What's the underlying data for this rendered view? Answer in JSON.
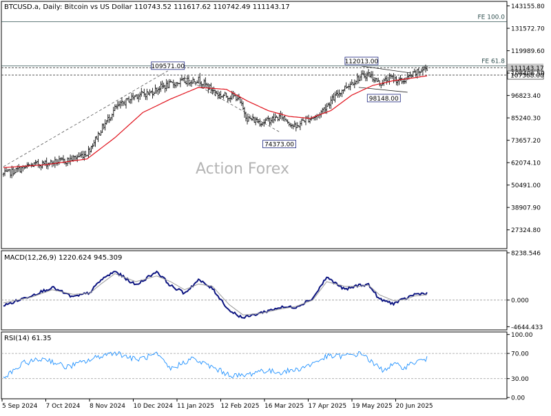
{
  "header": {
    "symbol_line": "BTCUSD.a, Daily:  Bitcoin vs US Dollar  110743.52 111617.62 110742.49 111143.17"
  },
  "watermark": "Action Forex",
  "colors": {
    "candle": "#0a0a0a",
    "ma": "#e0101a",
    "macd_line": "#0b1380",
    "macd_signal": "#9a9a9a",
    "rsi_line": "#1e90ff",
    "grid_dash": "#555555",
    "label_border": "#1a237e"
  },
  "chart_data": [
    {
      "type": "candlestick",
      "panel": "price",
      "y_ticks": [
        "143155.80",
        "131572.70",
        "119989.60",
        "108406.50",
        "96823.40",
        "85240.30",
        "73657.20",
        "62074.10",
        "50491.00",
        "38907.90",
        "27324.80"
      ],
      "y_tick_values": [
        143155.8,
        131572.7,
        119989.6,
        108406.5,
        96823.4,
        85240.3,
        73657.2,
        62074.1,
        50491.0,
        38907.9,
        27324.8
      ],
      "ylim": [
        17600,
        145500
      ],
      "x_ticks": [
        "5 Sep 2024",
        "7 Oct 2024",
        "8 Nov 2024",
        "10 Dec 2024",
        "11 Jan 2025",
        "12 Feb 2025",
        "16 Mar 2025",
        "17 Apr 2025",
        "19 May 2025",
        "20 Jun 2025"
      ],
      "bars_count": 305,
      "close_anchors": [
        [
          0,
          56000
        ],
        [
          22,
          61000
        ],
        [
          45,
          63000
        ],
        [
          60,
          67000
        ],
        [
          70,
          79000
        ],
        [
          80,
          90000
        ],
        [
          95,
          97000
        ],
        [
          105,
          98000
        ],
        [
          112,
          101000
        ],
        [
          128,
          104000
        ],
        [
          140,
          105000
        ],
        [
          155,
          97000
        ],
        [
          168,
          96000
        ],
        [
          175,
          85000
        ],
        [
          185,
          83000
        ],
        [
          200,
          86000
        ],
        [
          210,
          80000
        ],
        [
          215,
          84000
        ],
        [
          225,
          86000
        ],
        [
          235,
          94000
        ],
        [
          245,
          101000
        ],
        [
          255,
          106000
        ],
        [
          262,
          108000
        ],
        [
          270,
          103000
        ],
        [
          278,
          106000
        ],
        [
          286,
          104000
        ],
        [
          295,
          108000
        ],
        [
          304,
          111143
        ]
      ],
      "ma_anchors": [
        [
          0,
          59500
        ],
        [
          30,
          61000
        ],
        [
          60,
          64000
        ],
        [
          80,
          75000
        ],
        [
          100,
          88000
        ],
        [
          120,
          95000
        ],
        [
          140,
          101000
        ],
        [
          160,
          100000
        ],
        [
          175,
          94000
        ],
        [
          190,
          89000
        ],
        [
          205,
          86000
        ],
        [
          220,
          85000
        ],
        [
          235,
          89000
        ],
        [
          250,
          97000
        ],
        [
          265,
          102000
        ],
        [
          280,
          104500
        ],
        [
          295,
          106000
        ],
        [
          304,
          107000
        ]
      ],
      "annotations": [
        {
          "text": "109571.00",
          "value": 109571.0,
          "bar": 118
        },
        {
          "text": "112013.00",
          "value": 112013.0,
          "bar": 257
        },
        {
          "text": "98148.00",
          "value": 98148.0,
          "bar": 273
        },
        {
          "text": "74373.00",
          "value": 74373.0,
          "bar": 198
        }
      ],
      "levels": [
        {
          "label": "FE 100.0",
          "value": 135000
        },
        {
          "label": "FE 61.8",
          "value": 112100
        }
      ],
      "price_tags": [
        {
          "text": "111143.17",
          "value": 111143.17,
          "kind": "last"
        },
        {
          "text": "107368.00",
          "value": 107368.0,
          "kind": "line"
        }
      ],
      "dashed_horizontal": [
        111143.17,
        107368.0
      ]
    },
    {
      "type": "line",
      "panel": "macd",
      "title": "MACD(12,26,9) 1220.624 945.309",
      "y_ticks": [
        "8238.546",
        "0.000",
        "-4644.433"
      ],
      "y_tick_values": [
        8238.546,
        0,
        -4644.433
      ],
      "ylim": [
        -5200,
        8600
      ],
      "series": [
        {
          "name": "MACD",
          "anchors": [
            [
              0,
              -1000
            ],
            [
              20,
              800
            ],
            [
              35,
              2200
            ],
            [
              50,
              500
            ],
            [
              62,
              1300
            ],
            [
              70,
              3500
            ],
            [
              80,
              5000
            ],
            [
              95,
              2600
            ],
            [
              110,
              5000
            ],
            [
              120,
              2500
            ],
            [
              130,
              1200
            ],
            [
              140,
              3500
            ],
            [
              150,
              2000
            ],
            [
              162,
              -1800
            ],
            [
              172,
              -3100
            ],
            [
              185,
              -2200
            ],
            [
              198,
              -1300
            ],
            [
              210,
              -1200
            ],
            [
              222,
              300
            ],
            [
              232,
              4000
            ],
            [
              245,
              1800
            ],
            [
              255,
              2600
            ],
            [
              262,
              2700
            ],
            [
              270,
              100
            ],
            [
              280,
              -600
            ],
            [
              288,
              200
            ],
            [
              295,
              1000
            ],
            [
              304,
              1220
            ]
          ]
        },
        {
          "name": "Signal",
          "anchors": [
            [
              0,
              -500
            ],
            [
              20,
              500
            ],
            [
              35,
              1800
            ],
            [
              50,
              1000
            ],
            [
              62,
              1200
            ],
            [
              70,
              2800
            ],
            [
              80,
              4600
            ],
            [
              95,
              3200
            ],
            [
              110,
              4200
            ],
            [
              120,
              3200
            ],
            [
              130,
              1800
            ],
            [
              140,
              2800
            ],
            [
              150,
              2400
            ],
            [
              162,
              -800
            ],
            [
              172,
              -2600
            ],
            [
              185,
              -2300
            ],
            [
              198,
              -1600
            ],
            [
              210,
              -1100
            ],
            [
              222,
              0
            ],
            [
              232,
              3200
            ],
            [
              245,
              2400
            ],
            [
              255,
              2400
            ],
            [
              262,
              2600
            ],
            [
              270,
              900
            ],
            [
              280,
              -100
            ],
            [
              288,
              100
            ],
            [
              295,
              700
            ],
            [
              304,
              945
            ]
          ]
        }
      ]
    },
    {
      "type": "line",
      "panel": "rsi",
      "title": "RSI(14) 61.35",
      "y_ticks": [
        "100.00",
        "70.00",
        "30.00",
        "0.00"
      ],
      "y_tick_values": [
        100,
        70,
        30,
        0
      ],
      "ylim": [
        -2,
        104
      ],
      "levels": [
        70,
        30
      ],
      "series": [
        {
          "name": "RSI",
          "anchors": [
            [
              0,
              30
            ],
            [
              15,
              55
            ],
            [
              30,
              62
            ],
            [
              45,
              48
            ],
            [
              60,
              58
            ],
            [
              70,
              66
            ],
            [
              80,
              72
            ],
            [
              95,
              60
            ],
            [
              110,
              68
            ],
            [
              120,
              45
            ],
            [
              135,
              62
            ],
            [
              150,
              48
            ],
            [
              162,
              36
            ],
            [
              172,
              34
            ],
            [
              185,
              43
            ],
            [
              198,
              40
            ],
            [
              210,
              44
            ],
            [
              220,
              52
            ],
            [
              232,
              65
            ],
            [
              245,
              66
            ],
            [
              258,
              70
            ],
            [
              265,
              54
            ],
            [
              272,
              44
            ],
            [
              280,
              52
            ],
            [
              288,
              48
            ],
            [
              295,
              56
            ],
            [
              304,
              61.35
            ]
          ]
        }
      ]
    }
  ]
}
